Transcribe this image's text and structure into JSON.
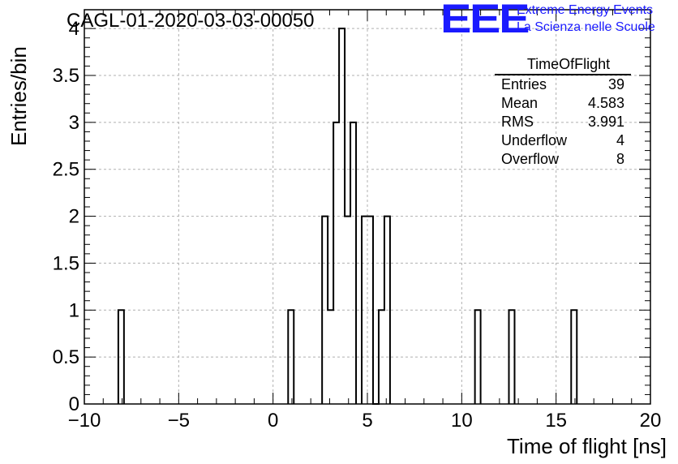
{
  "title": "CAGL-01-2020-03-03-00050",
  "logo": {
    "mark": "EEE",
    "line1": "Extreme Energy Events",
    "line2": "La Scienza nelle Scuole"
  },
  "stats": {
    "name": "TimeOfFlight",
    "rows": [
      {
        "label": "Entries",
        "value": "39"
      },
      {
        "label": "Mean",
        "value": "4.583"
      },
      {
        "label": "RMS",
        "value": "3.991"
      },
      {
        "label": "Underflow",
        "value": "4"
      },
      {
        "label": "Overflow",
        "value": "8"
      }
    ]
  },
  "chart_data": {
    "type": "histogram",
    "xlabel": "Time of flight [ns]",
    "ylabel": "Entries/bin",
    "xlim": [
      -10,
      20
    ],
    "ylim": [
      0,
      4.2
    ],
    "grid": true,
    "bin_width": 0.3,
    "bins": [
      {
        "lo": -8.2,
        "hi": -7.9,
        "count": 1
      },
      {
        "lo": 0.8,
        "hi": 1.1,
        "count": 1
      },
      {
        "lo": 2.6,
        "hi": 2.9,
        "count": 2
      },
      {
        "lo": 2.9,
        "hi": 3.2,
        "count": 1
      },
      {
        "lo": 3.2,
        "hi": 3.5,
        "count": 3
      },
      {
        "lo": 3.5,
        "hi": 3.8,
        "count": 4
      },
      {
        "lo": 3.8,
        "hi": 4.1,
        "count": 2
      },
      {
        "lo": 4.1,
        "hi": 4.4,
        "count": 3
      },
      {
        "lo": 4.7,
        "hi": 5.0,
        "count": 2
      },
      {
        "lo": 5.0,
        "hi": 5.3,
        "count": 2
      },
      {
        "lo": 5.3,
        "hi": 5.6,
        "count": 0
      },
      {
        "lo": 5.6,
        "hi": 5.9,
        "count": 1
      },
      {
        "lo": 5.9,
        "hi": 6.2,
        "count": 2
      },
      {
        "lo": 10.7,
        "hi": 11.0,
        "count": 1
      },
      {
        "lo": 12.5,
        "hi": 12.8,
        "count": 1
      },
      {
        "lo": 15.8,
        "hi": 16.1,
        "count": 1
      }
    ],
    "x_ticks": [
      -10,
      -5,
      0,
      5,
      10,
      15,
      20
    ],
    "x_tick_labels": [
      "−10",
      "−5",
      "0",
      "5",
      "10",
      "15",
      "20"
    ],
    "y_ticks": [
      0,
      0.5,
      1,
      1.5,
      2,
      2.5,
      3,
      3.5,
      4
    ],
    "y_tick_labels": [
      "0",
      "0.5",
      "1",
      "1.5",
      "2",
      "2.5",
      "3",
      "3.5",
      "4"
    ]
  }
}
